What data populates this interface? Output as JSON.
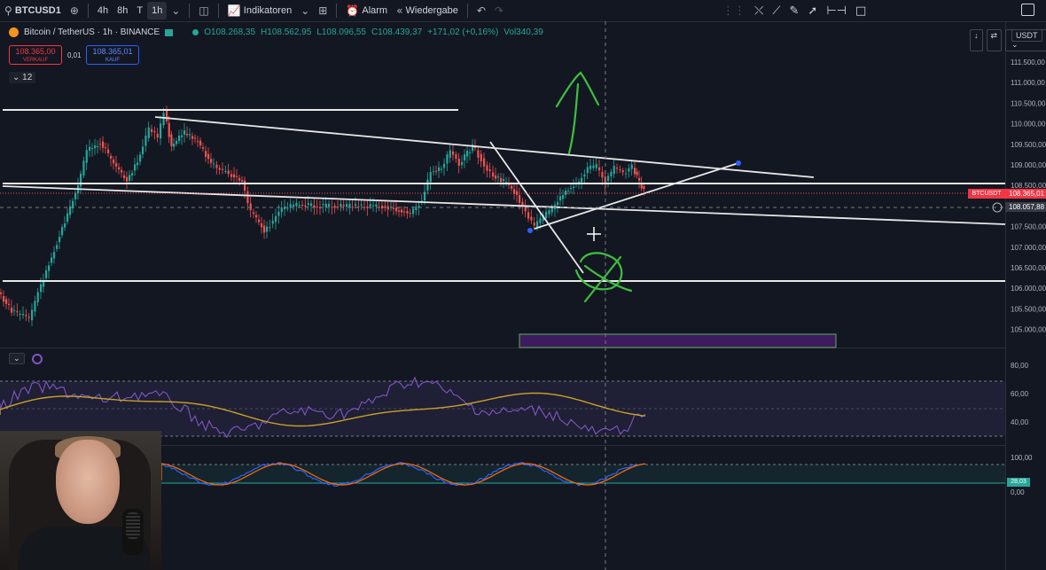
{
  "toolbar": {
    "symbol": "BTCUSD1",
    "timeframes": [
      "4h",
      "8h",
      "T",
      "1h"
    ],
    "active_timeframe": "1h",
    "indicators_label": "Indikatoren",
    "alarm_label": "Alarm",
    "replay_label": "Wiedergabe"
  },
  "legend": {
    "title": "Bitcoin / TetherUS · 1h · BINANCE",
    "open": "O108.268,35",
    "high": "H108.562,95",
    "low": "L108.096,55",
    "close": "C108.439,37",
    "change": "+171,02 (+0,16%)",
    "volume": "Vol340,39"
  },
  "trade": {
    "sell_price": "108.365,00",
    "sell_label": "VERKAUF",
    "spread": "0,01",
    "buy_price": "108.365,01",
    "buy_label": "KAUF"
  },
  "collapsed_count": "12",
  "currency": "USDT",
  "price_axis": {
    "labels": [
      "111.500,00",
      "111.000,00",
      "110.500,00",
      "110.000,00",
      "109.500,00",
      "109.000,00",
      "108.500,00",
      "108.000,00",
      "107.500,00",
      "107.000,00",
      "106.500,00",
      "106.000,00",
      "105.500,00",
      "105.000,00"
    ],
    "current_symbol_tag": "BTCUSDT",
    "current_price": "108.365,01",
    "crosshair_price": "108.057,88"
  },
  "rsi_axis": {
    "labels": [
      "80,00",
      "60,00",
      "40,00"
    ]
  },
  "stoch_axis": {
    "labels": [
      "100,00",
      "0,00"
    ],
    "current": "28,03"
  },
  "colors": {
    "background": "#131722",
    "up": "#26a69a",
    "down": "#ef5350",
    "rsi": "#7e57c2",
    "rsi_ma": "#c9a227",
    "stoch_k": "#2962ff",
    "stoch_d": "#ff6d00",
    "annotation": "#3fbf3f"
  },
  "icons": [
    "search-icon",
    "add-symbol-icon",
    "chart-type-icon",
    "indicators-icon",
    "layouts-icon",
    "alarm-icon",
    "replay-icon",
    "undo-icon",
    "redo-icon",
    "line-tool-icon",
    "trend-tool-icon",
    "brush-icon",
    "ray-icon",
    "measure-icon",
    "rectangle-icon"
  ]
}
